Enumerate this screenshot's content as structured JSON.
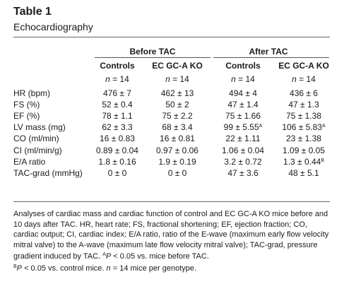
{
  "title": "Table 1",
  "subtitle": "Echocardiography",
  "groups": [
    "Before TAC",
    "After TAC"
  ],
  "columns": [
    "Controls",
    "EC GC-A KO",
    "Controls",
    "EC GC-A KO"
  ],
  "n_prefix": "n",
  "n_values": [
    "= 14",
    "= 14",
    "= 14",
    "= 14"
  ],
  "rows": [
    {
      "label": "HR (bpm)",
      "cells": [
        "476 ± 7",
        "462 ± 13",
        "494 ± 4",
        "436 ± 6"
      ],
      "sups": [
        "",
        "",
        "",
        ""
      ]
    },
    {
      "label": "FS (%)",
      "cells": [
        "52 ± 0.4",
        "50 ± 2",
        "47 ± 1.4",
        "47 ± 1.3"
      ],
      "sups": [
        "",
        "",
        "",
        ""
      ]
    },
    {
      "label": "EF (%)",
      "cells": [
        "78 ± 1.1",
        "75 ± 2.2",
        "75 ± 1.66",
        "75 ± 1.38"
      ],
      "sups": [
        "",
        "",
        "",
        ""
      ]
    },
    {
      "label": "LV mass (mg)",
      "cells": [
        "62 ± 3.3",
        "68 ± 3.4",
        "99 ± 5.55",
        "106 ± 5.83"
      ],
      "sups": [
        "",
        "",
        "A",
        "A"
      ]
    },
    {
      "label": "CO (ml/min)",
      "cells": [
        "16 ± 0.83",
        "16 ± 0.81",
        "22 ± 1.11",
        "23 ± 1.38"
      ],
      "sups": [
        "",
        "",
        "",
        ""
      ]
    },
    {
      "label": "CI (ml/min/g)",
      "cells": [
        "0.89 ± 0.04",
        "0.97 ± 0.06",
        "1.06 ± 0.04",
        "1.09 ± 0.05"
      ],
      "sups": [
        "",
        "",
        "",
        ""
      ]
    },
    {
      "label": "E/A ratio",
      "cells": [
        "1.8 ± 0.16",
        "1.9 ± 0.19",
        "3.2 ± 0.72",
        "1.3 ± 0.44"
      ],
      "sups": [
        "",
        "",
        "",
        "B"
      ]
    },
    {
      "label": "TAC-grad (mmHg)",
      "cells": [
        "0 ± 0",
        "0 ± 0",
        "47 ± 3.6",
        "48 ± 5.1"
      ],
      "sups": [
        "",
        "",
        "",
        ""
      ]
    }
  ],
  "footnote": {
    "main": "Analyses of cardiac mass and cardiac function of control and EC GC-A KO mice before and 10 days after TAC. HR, heart rate; FS, fractional shortening; EF, ejection fraction; CO, cardiac output; CI, cardiac index; E/A ratio, ratio of the E-wave (maximum early flow velocity mitral valve) to the A-wave (maximum late flow velocity mitral valve); TAC-grad, pressure gradient induced by TAC.",
    "a_mark": "A",
    "a_p": "P",
    "a_text": " < 0.05 vs. mice before TAC.",
    "b_mark": "B",
    "b_p": "P",
    "b_text": " < 0.05 vs. control mice.",
    "n_italic": "n",
    "n_text": " = 14 mice per genotype."
  }
}
